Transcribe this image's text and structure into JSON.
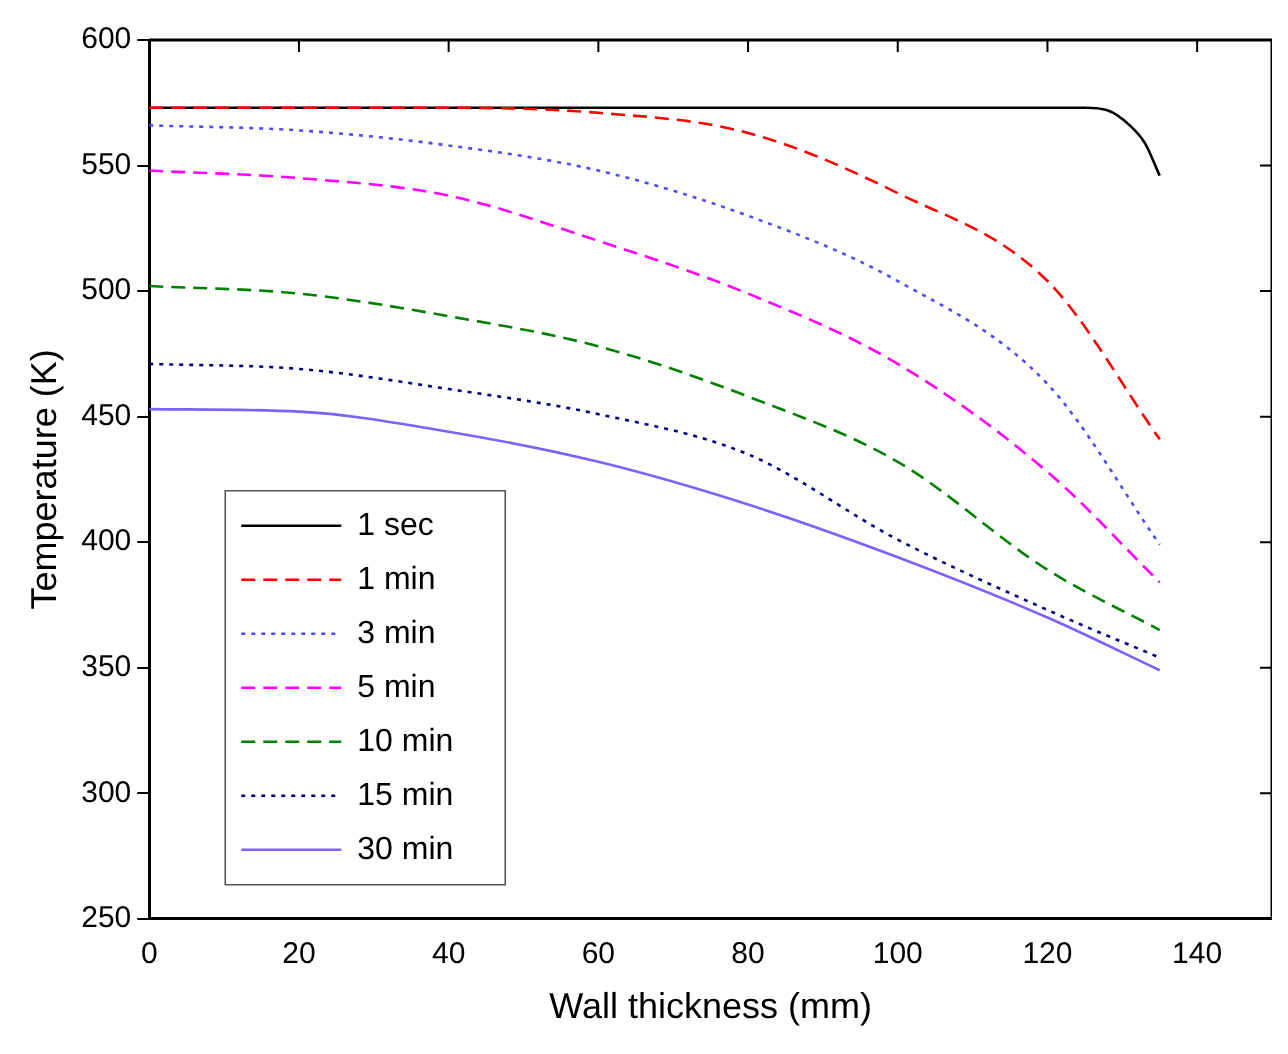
{
  "chart_data": {
    "type": "line",
    "xlabel": "Wall thickness (mm)",
    "ylabel": "Temperature (K)",
    "xlim": [
      0,
      150
    ],
    "xticks": [
      0,
      20,
      40,
      60,
      80,
      100,
      120,
      140
    ],
    "ylim": [
      250,
      600
    ],
    "yticks": [
      250,
      300,
      350,
      400,
      450,
      500,
      550,
      600
    ],
    "grid": false,
    "legend": "bottom left",
    "marker": "none",
    "series": [
      {
        "name": "1 sec",
        "color": "#000000",
        "line_style": "solid",
        "x": [
          0,
          40,
          80,
          120,
          125,
          128,
          131,
          133,
          135
        ],
        "values": [
          573,
          573,
          573,
          573,
          573,
          572,
          566,
          559,
          546
        ]
      },
      {
        "name": "1 min",
        "color": "#ff0000",
        "line_style": "dashed",
        "x": [
          0,
          20,
          40,
          60,
          80,
          100,
          120,
          135
        ],
        "values": [
          573,
          573,
          573,
          571,
          563,
          539,
          504,
          441
        ]
      },
      {
        "name": "3 min",
        "color": "#4d4dff",
        "line_style": "dotted",
        "x": [
          0,
          20,
          40,
          60,
          80,
          100,
          120,
          135
        ],
        "values": [
          566,
          564,
          558,
          548,
          530,
          504,
          463,
          399
        ]
      },
      {
        "name": "5 min",
        "color": "#ff00ff",
        "line_style": "dashed",
        "x": [
          0,
          20,
          40,
          60,
          80,
          100,
          120,
          135
        ],
        "values": [
          548,
          545,
          538,
          520,
          499,
          471,
          428,
          384
        ]
      },
      {
        "name": "10 min",
        "color": "#008000",
        "line_style": "dashed",
        "x": [
          0,
          20,
          40,
          60,
          80,
          100,
          120,
          135
        ],
        "values": [
          502,
          499,
          490,
          478,
          458,
          432,
          389,
          365
        ]
      },
      {
        "name": "15 min",
        "color": "#000080",
        "line_style": "dotted",
        "x": [
          0,
          20,
          40,
          60,
          80,
          100,
          120,
          135
        ],
        "values": [
          471,
          469,
          461,
          451,
          435,
          401,
          373,
          354
        ]
      },
      {
        "name": "30 min",
        "color": "#8060ff",
        "line_style": "solid",
        "x": [
          0,
          20,
          40,
          60,
          80,
          100,
          120,
          135
        ],
        "values": [
          453,
          452,
          444,
          432,
          415,
          394,
          370,
          349
        ]
      }
    ]
  }
}
